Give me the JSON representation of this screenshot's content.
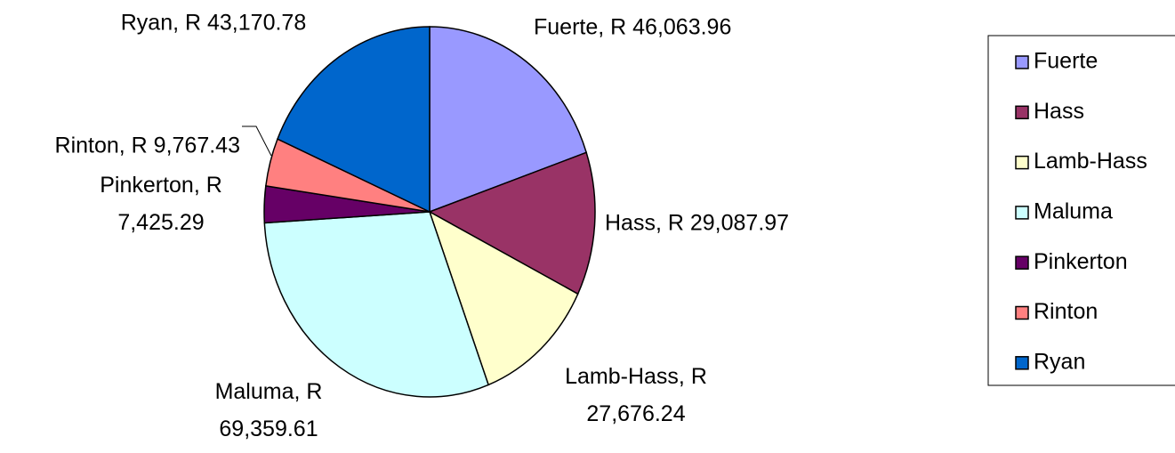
{
  "chart_data": {
    "type": "pie",
    "categories": [
      "Fuerte",
      "Hass",
      "Lamb-Hass",
      "Maluma",
      "Pinkerton",
      "Rinton",
      "Ryan"
    ],
    "values": [
      46063.96,
      29087.97,
      27676.24,
      69359.61,
      7425.29,
      9767.43,
      43170.78
    ],
    "value_labels": [
      "Fuerte, R 46,063.96",
      "Hass, R 29,087.97",
      "Lamb-Hass, R 27,676.24",
      "Maluma, R 69,359.61",
      "Pinkerton, R 7,425.29",
      "Rinton, R 9,767.43",
      "Ryan, R 43,170.78"
    ],
    "colors": [
      "#9999ff",
      "#993366",
      "#ffffcc",
      "#ccffff",
      "#660066",
      "#ff8080",
      "#0066cc"
    ],
    "legend": "right"
  }
}
